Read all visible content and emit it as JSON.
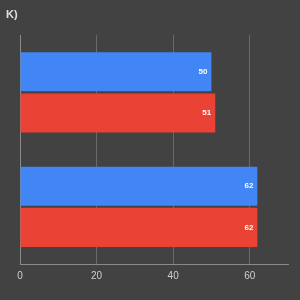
{
  "chart_data": {
    "type": "bar",
    "title": "K)",
    "orientation": "horizontal",
    "categories": [
      null,
      null
    ],
    "series": [
      {
        "color": "#4285f4",
        "values": [
          50,
          62
        ]
      },
      {
        "color": "#ea4335",
        "values": [
          51,
          62
        ]
      }
    ],
    "xlim": [
      0,
      70
    ],
    "xticks": [
      0,
      20,
      40,
      60
    ],
    "grid": true,
    "data_labels": true
  }
}
